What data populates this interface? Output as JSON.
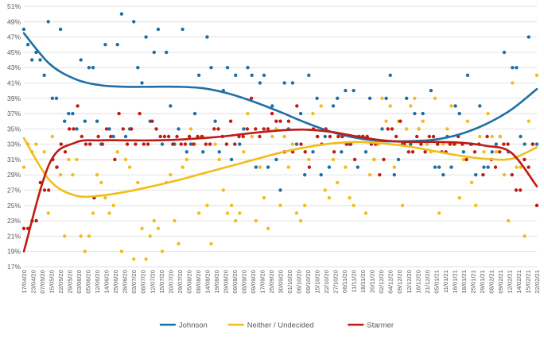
{
  "chart_data": {
    "type": "scatter",
    "title": "",
    "xlabel": "",
    "ylabel": "",
    "y_unit": "%",
    "ylim": [
      17,
      51
    ],
    "yticks": [
      "17%",
      "19%",
      "21%",
      "23%",
      "25%",
      "27%",
      "29%",
      "31%",
      "33%",
      "35%",
      "37%",
      "39%",
      "41%",
      "43%",
      "45%",
      "47%",
      "49%",
      "51%"
    ],
    "xticks": [
      "17/04/20",
      "23/04/20",
      "07/05/20",
      "15/05/20",
      "22/05/20",
      "29/05/20",
      "03/06/20",
      "05/06/20",
      "12/06/20",
      "14/06/20",
      "25/06/20",
      "28/06/20",
      "03/07/20",
      "08/07/20",
      "12/07/20",
      "15/07/20",
      "20/07/20",
      "29/07/20",
      "05/08/20",
      "08/08/20",
      "14/08/20",
      "19/08/20",
      "29/08/20",
      "09/08/20",
      "08/09/20",
      "09/09/20",
      "17/09/20",
      "25/09/20",
      "30/09/20",
      "01/10/20",
      "06/10/20",
      "09/10/20",
      "15/10/20",
      "22/10/20",
      "27/10/20",
      "06/11/20",
      "11/11/20",
      "18/11/20",
      "20/11/20",
      "02/12/20",
      "04/12/20",
      "09/12/20",
      "12/12/20",
      "16/12/20",
      "21/12/20",
      "05/01/21",
      "11/01/21",
      "16/01/21",
      "18/01/21",
      "25/01/21",
      "29/01/21",
      "08/02/21",
      "09/02/21",
      "12/02/21",
      "14/02/21",
      "15/02/21",
      "22/02/21"
    ],
    "legend_position": "bottom",
    "series": [
      {
        "name": "Johnson",
        "color": "#1f6fa6",
        "points": [
          48,
          46,
          44,
          45,
          44,
          42,
          49,
          39,
          39,
          48,
          36,
          37,
          37,
          35,
          44,
          36,
          43,
          43,
          36,
          33,
          46,
          35,
          34,
          46,
          50,
          34,
          35,
          49,
          43,
          41,
          47,
          36,
          45,
          48,
          33,
          45,
          38,
          33,
          35,
          48,
          32,
          33,
          37,
          42,
          32,
          47,
          43,
          36,
          32,
          40,
          43,
          31,
          42,
          33,
          35,
          43,
          42,
          30,
          41,
          42,
          30,
          38,
          31,
          27,
          41,
          35,
          41,
          33,
          37,
          29,
          42,
          32,
          39,
          29,
          34,
          30,
          38,
          39,
          32,
          40,
          33,
          40,
          30,
          34,
          32,
          39,
          31,
          33,
          35,
          39,
          42,
          29,
          31,
          33,
          39,
          33,
          37,
          35,
          37,
          33,
          40,
          30,
          30,
          29,
          34,
          30,
          38,
          37,
          32,
          42,
          33,
          29,
          38,
          30,
          30,
          32,
          33,
          34,
          45,
          32,
          43,
          43,
          34,
          33,
          47,
          33,
          33
        ],
        "trend": [
          47.5,
          43.5,
          41.5,
          40.7,
          40.5,
          40.5,
          40.5,
          40.3,
          39.6,
          38.5,
          37.2,
          35.8,
          34.6,
          33.8,
          33.4,
          33.4,
          33.6,
          34.3,
          35.6,
          37.5,
          40.2
        ]
      },
      {
        "name": "Neither / Undecided",
        "color": "#f2bd1a",
        "points": [
          30,
          33,
          32,
          33,
          27,
          32,
          24,
          34,
          30,
          29,
          21,
          31,
          29,
          31,
          21,
          19,
          21,
          24,
          29,
          28,
          26,
          24,
          25,
          32,
          19,
          31,
          30,
          18,
          28,
          22,
          18,
          21,
          23,
          22,
          19,
          28,
          29,
          23,
          20,
          30,
          31,
          35,
          33,
          24,
          34,
          25,
          20,
          33,
          31,
          27,
          24,
          25,
          23,
          24,
          32,
          37,
          34,
          23,
          30,
          26,
          22,
          34,
          35,
          25,
          34,
          30,
          33,
          24,
          23,
          25,
          31,
          37,
          34,
          38,
          27,
          26,
          31,
          28,
          34,
          30,
          26,
          25,
          34,
          34,
          24,
          29,
          31,
          33,
          39,
          36,
          38,
          30,
          36,
          25,
          35,
          38,
          39,
          35,
          36,
          33,
          32,
          39,
          24,
          33,
          35,
          38,
          33,
          26,
          31,
          36,
          28,
          25,
          34,
          32,
          37,
          34,
          32,
          34,
          29,
          23,
          41,
          30,
          30,
          21,
          36,
          33,
          42
        ],
        "trend": [
          33.8,
          28.3,
          26.3,
          26.3,
          26.8,
          27.5,
          28.3,
          29.2,
          30.1,
          31.0,
          31.9,
          32.6,
          33.1,
          33.3,
          33.1,
          32.7,
          32.1,
          31.5,
          31.1,
          31.1,
          32.6
        ]
      },
      {
        "name": "Starmer",
        "color": "#c01b14",
        "points": [
          22,
          22,
          23,
          23,
          28,
          27,
          27,
          31,
          30,
          33,
          32,
          35,
          35,
          38,
          34,
          33,
          33,
          26,
          34,
          33,
          35,
          34,
          31,
          37,
          35,
          33,
          35,
          33,
          37,
          33,
          33,
          36,
          35,
          34,
          34,
          34,
          33,
          34,
          33,
          33,
          34,
          33,
          34,
          34,
          33,
          33,
          35,
          35,
          34,
          33,
          36,
          33,
          34,
          34,
          35,
          39,
          35,
          34,
          35,
          35,
          37,
          36,
          36,
          32,
          36,
          32,
          38,
          33,
          32,
          30,
          35,
          34,
          33,
          35,
          34,
          32,
          34,
          34,
          33,
          33,
          31,
          34,
          34,
          34,
          33,
          33,
          29,
          31,
          35,
          35,
          34,
          36,
          33,
          32,
          32,
          34,
          33,
          32,
          34,
          34,
          33,
          32,
          32,
          33,
          33,
          34,
          33,
          31,
          33,
          32,
          33,
          29,
          34,
          31,
          30,
          32,
          33,
          33,
          29,
          27,
          27,
          31,
          30,
          33,
          25
        ],
        "trend": [
          19.0,
          30.5,
          33.2,
          33.5,
          33.5,
          33.5,
          33.6,
          33.8,
          34.1,
          34.5,
          34.8,
          34.9,
          34.6,
          34.0,
          33.5,
          33.3,
          33.3,
          33.2,
          32.8,
          31.9,
          27.5
        ]
      }
    ]
  }
}
